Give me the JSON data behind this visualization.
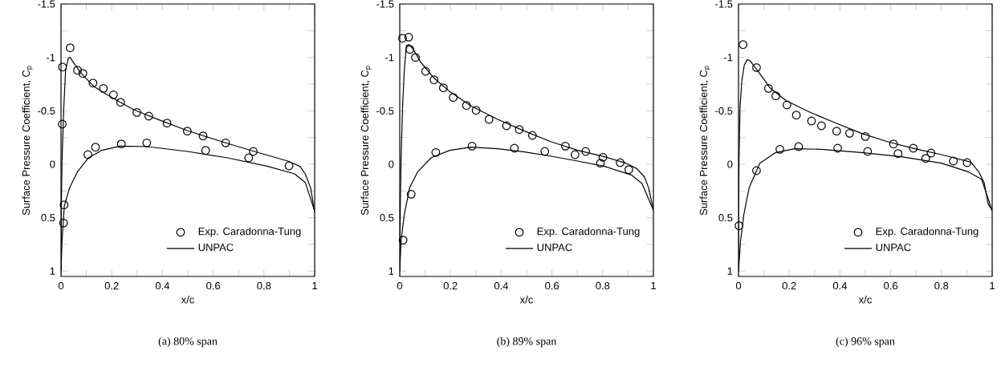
{
  "chart_data": [
    {
      "type": "line",
      "xlabel": "x/c",
      "ylabel": "Surface Pressure Coefficient, C$_{p}$",
      "annotations": [
        "(a) 80% span"
      ],
      "legend": "bottom right",
      "xlim": [
        0,
        1
      ],
      "ylim": [
        1.05,
        -1.5
      ],
      "xticks": [
        0,
        {
          "value": 0.1,
          "label": null
        },
        0.2,
        {
          "value": 0.3,
          "label": null
        },
        0.4,
        {
          "value": 0.5,
          "label": null
        },
        0.6,
        {
          "value": 0.7,
          "label": null
        },
        0.8,
        {
          "value": 0.9,
          "label": null
        },
        1
      ],
      "yticks": [
        -1.5,
        {
          "value": -1.25,
          "label": null
        },
        -1,
        {
          "value": -0.75,
          "label": null
        },
        -0.5,
        {
          "value": -0.25,
          "label": null
        },
        0,
        {
          "value": 0.25,
          "label": null
        },
        0.5,
        {
          "value": 0.75,
          "label": null
        },
        1
      ],
      "series": [
        {
          "name": "Exp. Caradonna-Tung",
          "type": "scatter",
          "marker": "circle",
          "color": "#000000",
          "x": [
            0.005,
            0.006,
            0.036,
            0.065,
            0.086,
            0.126,
            0.167,
            0.207,
            0.235,
            0.299,
            0.346,
            0.418,
            0.498,
            0.56,
            0.649,
            0.758,
            0.012,
            0.01,
            0.106,
            0.136,
            0.238,
            0.338,
            0.57,
            0.74,
            0.899
          ],
          "values": [
            -0.375,
            -0.91,
            -1.09,
            -0.88,
            -0.85,
            -0.76,
            -0.71,
            -0.65,
            -0.58,
            -0.485,
            -0.45,
            -0.385,
            -0.31,
            -0.265,
            -0.2,
            -0.12,
            0.38,
            0.55,
            -0.09,
            -0.16,
            -0.19,
            -0.2,
            -0.13,
            -0.06,
            0.015
          ]
        },
        {
          "name": "UNPAC",
          "color": "#000000",
          "x": [
            1,
            0.984,
            0.963,
            0.942,
            0.894,
            0.762,
            0.656,
            0.498,
            0.393,
            0.287,
            0.203,
            0.129,
            0.076,
            0.044,
            0.036,
            0.029,
            0.018,
            0.011,
            0.004,
            0.001,
            0
          ],
          "values": [
            0.45,
            0.22,
            0.09,
            0.02,
            -0.03,
            -0.12,
            -0.195,
            -0.315,
            -0.41,
            -0.51,
            -0.62,
            -0.73,
            -0.86,
            -0.97,
            -1.0,
            -0.995,
            -0.88,
            -0.53,
            -0.03,
            0.42,
            1.0
          ]
        },
        {
          "color": "#000000",
          "x": [
            0,
            0.004,
            0.013,
            0.034,
            0.065,
            0.108,
            0.16,
            0.234,
            0.34,
            0.498,
            0.657,
            0.815,
            0.921,
            0.963,
            1
          ],
          "values": [
            1.0,
            0.72,
            0.39,
            0.22,
            0.07,
            -0.06,
            -0.13,
            -0.17,
            -0.165,
            -0.12,
            -0.06,
            0.02,
            0.09,
            0.17,
            0.44
          ]
        }
      ]
    },
    {
      "type": "line",
      "xlabel": "x/c",
      "ylabel": "Surface Pressure Coefficient, C$_{p}$",
      "annotations": [
        "(b) 89% span"
      ],
      "legend": "bottom right",
      "xlim": [
        0,
        1
      ],
      "ylim": [
        1.05,
        -1.5
      ],
      "xticks": [
        0,
        {
          "value": 0.1,
          "label": null
        },
        0.2,
        {
          "value": 0.3,
          "label": null
        },
        0.4,
        {
          "value": 0.5,
          "label": null
        },
        0.6,
        {
          "value": 0.7,
          "label": null
        },
        0.8,
        {
          "value": 0.9,
          "label": null
        },
        1
      ],
      "yticks": [
        -1.5,
        {
          "value": -1.25,
          "label": null
        },
        -1,
        {
          "value": -0.75,
          "label": null
        },
        -0.5,
        {
          "value": -0.25,
          "label": null
        },
        0,
        {
          "value": 0.25,
          "label": null
        },
        0.5,
        {
          "value": 0.75,
          "label": null
        },
        1
      ],
      "series": [
        {
          "name": "Exp. Caradonna-Tung",
          "type": "scatter",
          "marker": "circle",
          "color": "#000000",
          "x": [
            0.011,
            0.035,
            0.04,
            0.062,
            0.102,
            0.135,
            0.172,
            0.211,
            0.263,
            0.301,
            0.352,
            0.421,
            0.471,
            0.523,
            0.653,
            0.733,
            0.801,
            0.869,
            0.903,
            0.013,
            0.045,
            0.142,
            0.285,
            0.452,
            0.572,
            0.691,
            0.791
          ],
          "values": [
            -1.18,
            -1.19,
            -1.075,
            -1.0,
            -0.87,
            -0.79,
            -0.715,
            -0.625,
            -0.55,
            -0.505,
            -0.42,
            -0.36,
            -0.325,
            -0.27,
            -0.17,
            -0.12,
            -0.065,
            -0.015,
            0.05,
            0.71,
            0.28,
            -0.11,
            -0.17,
            -0.15,
            -0.12,
            -0.09,
            -0.01
          ]
        },
        {
          "name": "UNPAC",
          "color": "#000000",
          "x": [
            1,
            0.981,
            0.965,
            0.934,
            0.892,
            0.807,
            0.702,
            0.597,
            0.492,
            0.386,
            0.281,
            0.197,
            0.134,
            0.081,
            0.055,
            0.037,
            0.026,
            0.018,
            0.011,
            0.005,
            0.002,
            0
          ],
          "values": [
            0.43,
            0.22,
            0.12,
            0.04,
            -0.01,
            -0.07,
            -0.13,
            -0.21,
            -0.31,
            -0.42,
            -0.545,
            -0.68,
            -0.81,
            -0.96,
            -1.07,
            -1.12,
            -1.11,
            -0.88,
            -0.53,
            -0.03,
            0.42,
            1.0
          ]
        },
        {
          "color": "#000000",
          "x": [
            0,
            0.005,
            0.018,
            0.039,
            0.071,
            0.123,
            0.197,
            0.281,
            0.386,
            0.492,
            0.597,
            0.702,
            0.807,
            0.913,
            0.955,
            1
          ],
          "values": [
            1.0,
            0.72,
            0.47,
            0.22,
            0.07,
            -0.06,
            -0.13,
            -0.16,
            -0.145,
            -0.115,
            -0.075,
            -0.03,
            0.02,
            0.1,
            0.18,
            0.43
          ]
        }
      ]
    },
    {
      "type": "line",
      "xlabel": "x/c",
      "ylabel": "Surface Pressure Coefficient, C$_{p}$",
      "annotations": [
        "(c) 96% span"
      ],
      "legend": "bottom right",
      "xlim": [
        0,
        1
      ],
      "ylim": [
        1.05,
        -1.5
      ],
      "xticks": [
        0,
        {
          "value": 0.1,
          "label": null
        },
        0.2,
        {
          "value": 0.3,
          "label": null
        },
        0.4,
        {
          "value": 0.5,
          "label": null
        },
        0.6,
        {
          "value": 0.7,
          "label": null
        },
        0.8,
        {
          "value": 0.9,
          "label": null
        },
        1
      ],
      "yticks": [
        -1.5,
        {
          "value": -1.25,
          "label": null
        },
        -1,
        {
          "value": -0.75,
          "label": null
        },
        -0.5,
        {
          "value": -0.25,
          "label": null
        },
        0,
        {
          "value": 0.25,
          "label": null
        },
        0.5,
        {
          "value": 0.75,
          "label": null
        },
        1
      ],
      "series": [
        {
          "name": "Exp. Caradonna-Tung",
          "type": "scatter",
          "marker": "circle",
          "color": "#000000",
          "x": [
            0.018,
            0.071,
            0.118,
            0.147,
            0.191,
            0.228,
            0.288,
            0.327,
            0.387,
            0.438,
            0.5,
            0.611,
            0.689,
            0.759,
            0.847,
            0.901,
            0.002,
            0.071,
            0.163,
            0.237,
            0.391,
            0.509,
            0.629,
            0.738
          ],
          "values": [
            -1.12,
            -0.905,
            -0.71,
            -0.64,
            -0.555,
            -0.46,
            -0.405,
            -0.36,
            -0.31,
            -0.29,
            -0.26,
            -0.19,
            -0.15,
            -0.105,
            -0.03,
            -0.015,
            0.575,
            0.06,
            -0.14,
            -0.165,
            -0.15,
            -0.12,
            -0.1,
            -0.055
          ]
        },
        {
          "name": "UNPAC",
          "color": "#000000",
          "x": [
            1,
            0.984,
            0.968,
            0.947,
            0.916,
            0.8,
            0.695,
            0.589,
            0.484,
            0.379,
            0.274,
            0.189,
            0.126,
            0.074,
            0.047,
            0.035,
            0.023,
            0.013,
            0.006,
            0.002,
            0.0005,
            0
          ],
          "values": [
            0.43,
            0.37,
            0.17,
            0.07,
            -0.02,
            -0.09,
            -0.145,
            -0.21,
            -0.29,
            -0.39,
            -0.495,
            -0.595,
            -0.71,
            -0.88,
            -0.965,
            -0.98,
            -0.93,
            -0.78,
            -0.53,
            -0.03,
            0.42,
            1.0
          ]
        },
        {
          "color": "#000000",
          "x": [
            0,
            0.008,
            0.021,
            0.042,
            0.084,
            0.147,
            0.221,
            0.326,
            0.484,
            0.642,
            0.8,
            0.905,
            0.958,
            0.984,
            1
          ],
          "values": [
            1.0,
            0.72,
            0.47,
            0.22,
            -0.01,
            -0.11,
            -0.145,
            -0.14,
            -0.11,
            -0.07,
            -0.01,
            0.07,
            0.14,
            0.32,
            0.44
          ]
        }
      ]
    }
  ]
}
